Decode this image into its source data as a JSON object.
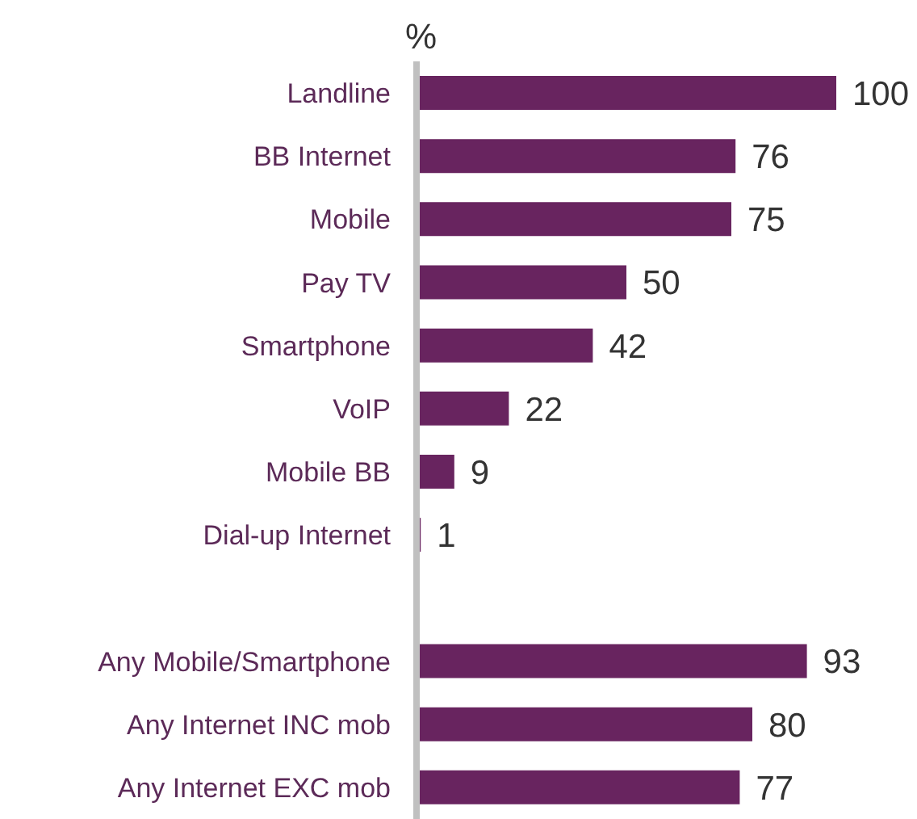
{
  "chart_data": {
    "type": "bar",
    "orientation": "horizontal",
    "xlabel": "%",
    "categories": [
      "Landline",
      "BB Internet",
      "Mobile",
      "Pay TV",
      "Smartphone",
      "VoIP",
      "Mobile BB",
      "Dial-up Internet",
      null,
      "Any Mobile/Smartphone",
      "Any Internet INC mob",
      "Any Internet EXC mob"
    ],
    "values": [
      100,
      76,
      75,
      50,
      42,
      22,
      9,
      1,
      null,
      93,
      80,
      77
    ],
    "color": "#68245f",
    "data_labels": true,
    "tick_labels": "y"
  }
}
